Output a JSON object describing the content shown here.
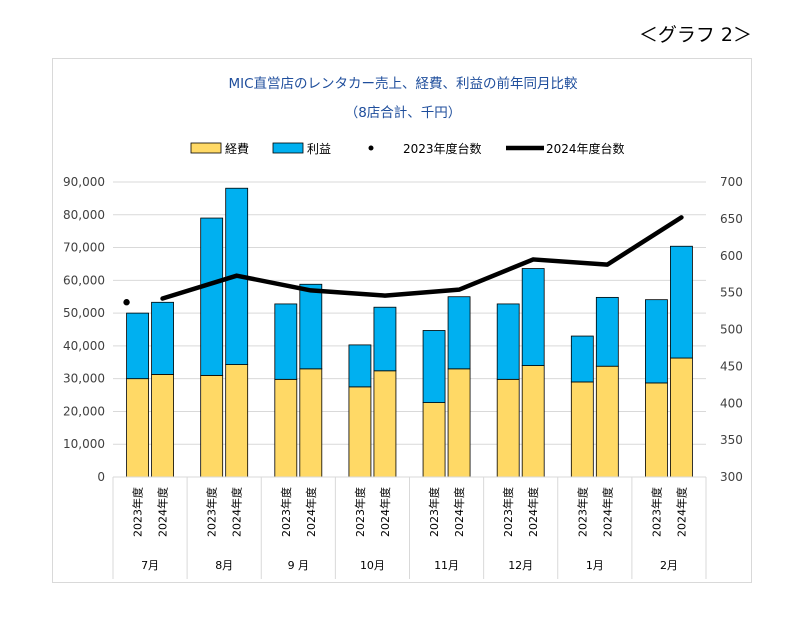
{
  "page_label": "＜グラフ 2＞",
  "chart_data": {
    "type": "bar",
    "title": "MIC直営店のレンタカー売上、経費、利益の前年同月比較",
    "subtitle": "（8店合計、千円）",
    "months": [
      "7月",
      "8月",
      "9 月",
      "10月",
      "11月",
      "12月",
      "1月",
      "2月"
    ],
    "bar_labels": [
      "2023年度",
      "2024年度"
    ],
    "stacked": true,
    "series": [
      {
        "name": "経費",
        "color": "#ffd966",
        "values": [
          [
            30000,
            31300
          ],
          [
            31000,
            34300
          ],
          [
            29800,
            33000
          ],
          [
            27500,
            32400
          ],
          [
            22700,
            33000
          ],
          [
            29800,
            34000
          ],
          [
            29000,
            33800
          ],
          [
            28700,
            36300
          ]
        ]
      },
      {
        "name": "利益",
        "color": "#00b0f0",
        "values": [
          [
            20000,
            22000
          ],
          [
            48000,
            53800
          ],
          [
            23000,
            25800
          ],
          [
            12800,
            19400
          ],
          [
            22000,
            22000
          ],
          [
            23000,
            29600
          ],
          [
            14000,
            21000
          ],
          [
            25400,
            34100
          ]
        ]
      }
    ],
    "lines": [
      {
        "name": "2023年度台数",
        "style": "marker",
        "color": "#000000",
        "values": [
          537
        ]
      },
      {
        "name": "2024年度台数",
        "style": "thick-line",
        "color": "#000000",
        "values": [
          542,
          573,
          553,
          546,
          554,
          595,
          588,
          652
        ]
      }
    ],
    "y_left": {
      "min": 0,
      "max": 90000,
      "step": 10000,
      "ticks": [
        "0",
        "10,000",
        "20,000",
        "30,000",
        "40,000",
        "50,000",
        "60,000",
        "70,000",
        "80,000",
        "90,000"
      ]
    },
    "y_right": {
      "min": 300,
      "max": 700,
      "step": 50,
      "ticks": [
        "300",
        "350",
        "400",
        "450",
        "500",
        "550",
        "600",
        "650",
        "700"
      ]
    },
    "grid": true,
    "legend_position": "top"
  }
}
